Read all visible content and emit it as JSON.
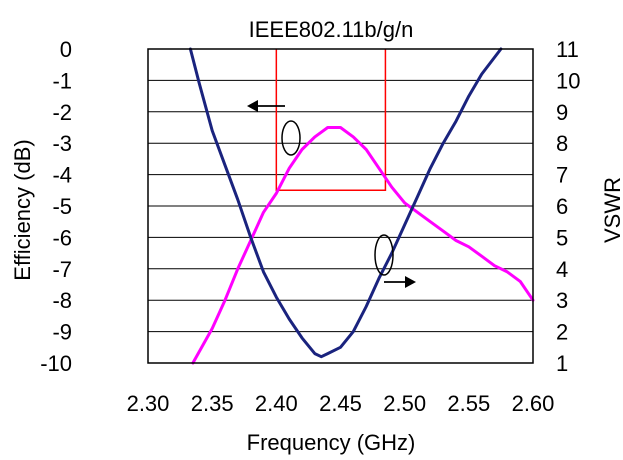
{
  "chart_data": {
    "type": "line",
    "title": "IEEE802.11b/g/n",
    "xlabel": "Frequency (GHz)",
    "ylabel_left": "Efficiency (dB)",
    "ylabel_right": "VSWR",
    "xlim": [
      2.3,
      2.6
    ],
    "ylim_left": [
      -10,
      0
    ],
    "ylim_right": [
      1,
      11
    ],
    "x_ticks": [
      "2.30",
      "2.35",
      "2.40",
      "2.45",
      "2.50",
      "2.55",
      "2.60"
    ],
    "y_left_ticks": [
      "0",
      "-1",
      "-2",
      "-3",
      "-4",
      "-5",
      "-6",
      "-7",
      "-8",
      "-9",
      "-10"
    ],
    "y_right_ticks": [
      "11",
      "10",
      "9",
      "8",
      "7",
      "6",
      "5",
      "4",
      "3",
      "2",
      "1"
    ],
    "grid": "horizontal",
    "band_box": {
      "x": [
        2.4,
        2.485
      ],
      "y_left": [
        -4.5,
        0
      ]
    },
    "series": [
      {
        "axis": "left",
        "color": "#ff00ff",
        "x": [
          2.335,
          2.35,
          2.36,
          2.37,
          2.38,
          2.39,
          2.4,
          2.41,
          2.42,
          2.43,
          2.44,
          2.45,
          2.46,
          2.47,
          2.48,
          2.49,
          2.5,
          2.51,
          2.52,
          2.53,
          2.54,
          2.55,
          2.56,
          2.57,
          2.58,
          2.59,
          2.6
        ],
        "values": [
          -10.0,
          -8.9,
          -8.0,
          -7.0,
          -6.1,
          -5.2,
          -4.6,
          -3.8,
          -3.2,
          -2.8,
          -2.5,
          -2.5,
          -2.8,
          -3.2,
          -3.8,
          -4.4,
          -4.9,
          -5.2,
          -5.5,
          -5.8,
          -6.1,
          -6.3,
          -6.6,
          -6.9,
          -7.1,
          -7.4,
          -8.0
        ]
      },
      {
        "axis": "right",
        "color": "#1a237e",
        "x": [
          2.333,
          2.34,
          2.35,
          2.36,
          2.37,
          2.38,
          2.39,
          2.4,
          2.41,
          2.42,
          2.43,
          2.435,
          2.44,
          2.45,
          2.46,
          2.47,
          2.48,
          2.49,
          2.5,
          2.51,
          2.52,
          2.53,
          2.54,
          2.55,
          2.56,
          2.575
        ],
        "values": [
          11.0,
          9.9,
          8.4,
          7.3,
          6.2,
          5.0,
          3.9,
          3.1,
          2.4,
          1.8,
          1.3,
          1.2,
          1.3,
          1.5,
          2.0,
          2.8,
          3.7,
          4.5,
          5.4,
          6.3,
          7.2,
          8.0,
          8.7,
          9.5,
          10.2,
          11.0
        ]
      }
    ]
  }
}
